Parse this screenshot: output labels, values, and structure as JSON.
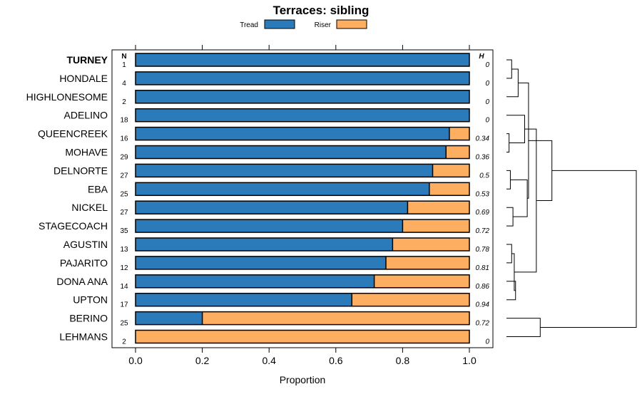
{
  "chart_data": {
    "type": "bar",
    "stacked": true,
    "orientation": "horizontal",
    "title": "Terraces: sibling",
    "xlabel": "Proportion",
    "xlim": [
      0,
      1
    ],
    "xticks": [
      "0.0",
      "0.2",
      "0.4",
      "0.6",
      "0.8",
      "1.0"
    ],
    "tick_values": [
      0,
      0.2,
      0.4,
      0.6,
      0.8,
      1.0
    ],
    "n_header": "N",
    "h_header": "H",
    "legend": {
      "position": "top",
      "entries": [
        {
          "name": "Tread",
          "color": "#2b7bba"
        },
        {
          "name": "Riser",
          "color": "#fdae61"
        }
      ]
    },
    "categories": [
      "TURNEY",
      "HONDALE",
      "HIGHLONESOME",
      "ADELINO",
      "QUEENCREEK",
      "MOHAVE",
      "DELNORTE",
      "EBA",
      "NICKEL",
      "STAGECOACH",
      "AGUSTIN",
      "PAJARITO",
      "DONA ANA",
      "UPTON",
      "BERINO",
      "LEHMANS"
    ],
    "highlight": "TURNEY",
    "series": [
      {
        "name": "Tread",
        "values": [
          1.0,
          1.0,
          1.0,
          1.0,
          0.94,
          0.93,
          0.89,
          0.88,
          0.815,
          0.8,
          0.77,
          0.75,
          0.715,
          0.648,
          0.2,
          0.0
        ]
      },
      {
        "name": "Riser",
        "values": [
          0.0,
          0.0,
          0.0,
          0.0,
          0.06,
          0.07,
          0.11,
          0.12,
          0.185,
          0.2,
          0.23,
          0.25,
          0.285,
          0.352,
          0.8,
          1.0
        ]
      }
    ],
    "n": [
      "1",
      "4",
      "2",
      "18",
      "16",
      "29",
      "27",
      "25",
      "27",
      "35",
      "13",
      "12",
      "14",
      "17",
      "25",
      "2"
    ],
    "h": [
      "0",
      "0",
      "0",
      "0",
      "0.34",
      "0.36",
      "0.5",
      "0.53",
      "0.69",
      "0.72",
      "0.78",
      "0.81",
      "0.86",
      "0.94",
      "0.72",
      "0"
    ],
    "dendrogram": {
      "merges": [
        [
          0,
          1,
          0.04
        ],
        [
          4,
          5,
          0.02
        ],
        [
          6,
          7,
          0.03
        ],
        [
          8,
          9,
          0.05
        ],
        [
          10,
          11,
          0.04
        ],
        [
          12,
          13,
          0.07
        ],
        [
          16,
          2,
          0.09
        ],
        [
          17,
          3,
          0.14
        ],
        [
          18,
          19,
          0.16
        ],
        [
          20,
          21,
          0.06
        ],
        [
          22,
          24,
          0.17
        ],
        [
          23,
          25,
          0.23
        ],
        [
          26,
          27,
          0.35
        ],
        [
          14,
          15,
          0.26
        ],
        [
          28,
          29,
          1.0
        ]
      ]
    }
  }
}
